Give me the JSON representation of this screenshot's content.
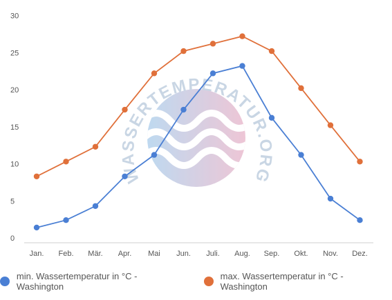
{
  "chart_data": {
    "type": "line",
    "categories": [
      "Jan.",
      "Feb.",
      "Mär.",
      "Apr.",
      "Mai",
      "Jun.",
      "Juli.",
      "Aug.",
      "Sep.",
      "Okt.",
      "Nov.",
      "Dez."
    ],
    "ylim": [
      0,
      30
    ],
    "yticks": [
      0,
      5,
      10,
      15,
      20,
      25,
      30
    ],
    "grid": false,
    "legend_position": "bottom",
    "series": [
      {
        "name": "min. Wassertemperatur in °C - Washington",
        "color": "#4a7fd4",
        "values": [
          1.4,
          2.4,
          4.3,
          8.3,
          11.2,
          17.3,
          22.2,
          23.2,
          16.2,
          11.2,
          5.3,
          2.4
        ]
      },
      {
        "name": "max. Wassertemperatur in °C - Washington",
        "color": "#e0703a",
        "values": [
          8.3,
          10.3,
          12.3,
          17.3,
          22.2,
          25.2,
          26.2,
          27.2,
          25.2,
          20.2,
          15.2,
          10.3
        ]
      }
    ]
  },
  "watermark": {
    "text": "WASSERTEMPERATUR.ORG"
  }
}
